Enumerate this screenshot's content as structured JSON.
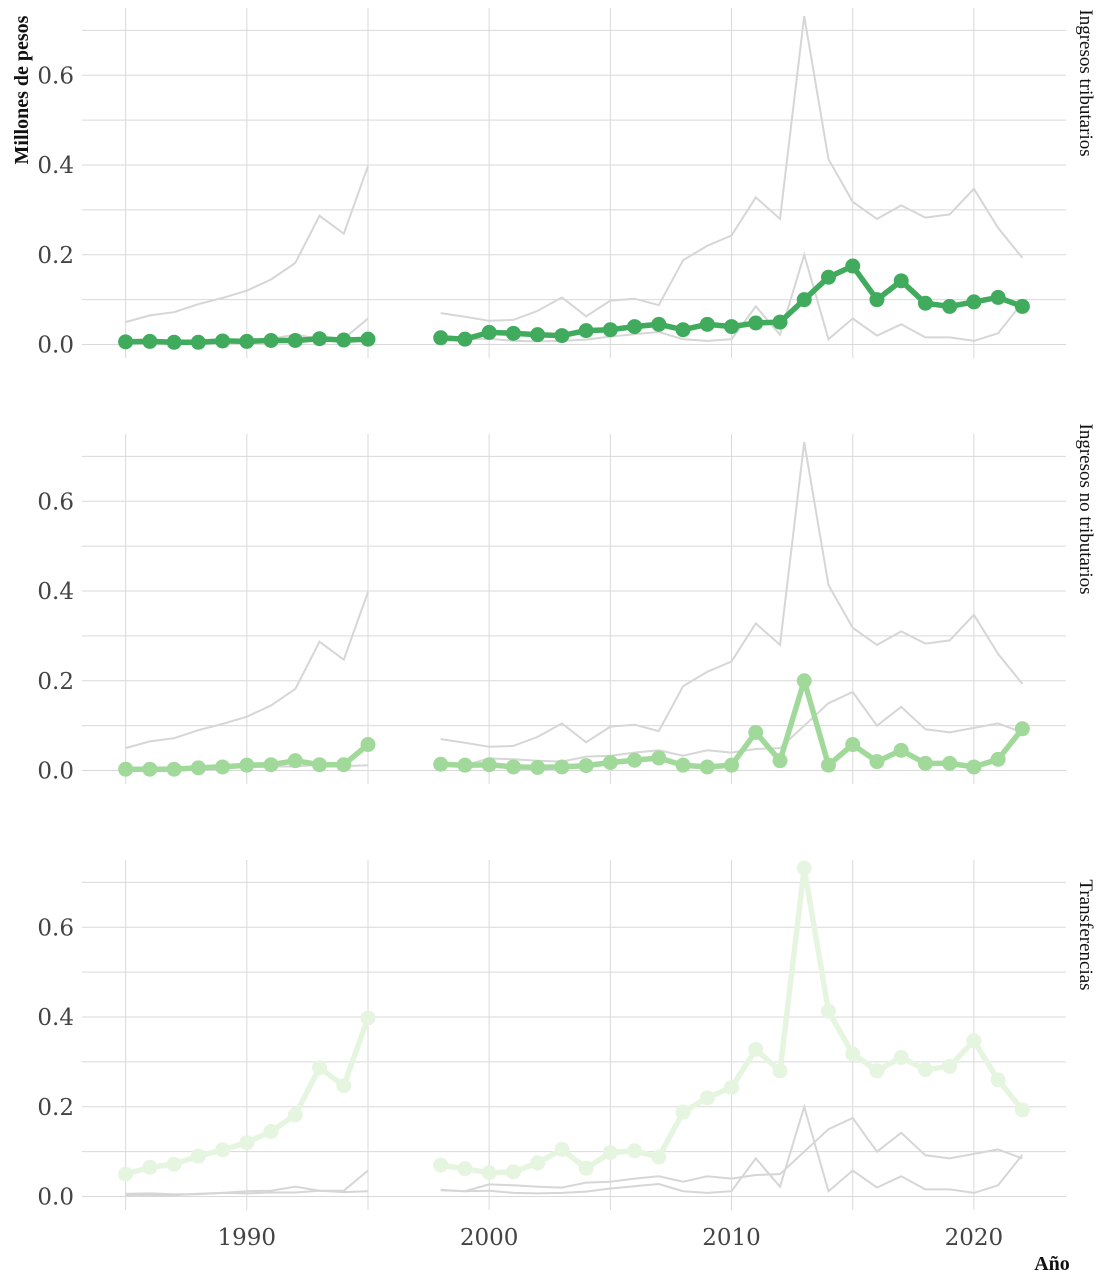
{
  "chart_data": {
    "type": "line",
    "xlabel": "Año",
    "ylabel": "Millones de pesos",
    "xticks": [
      1990,
      2000,
      2010,
      2020
    ],
    "yticks": [
      0.0,
      0.2,
      0.4,
      0.6
    ],
    "ytick_labels": [
      "0.0",
      "0.2",
      "0.4",
      "0.6"
    ],
    "xlim": [
      1983.2,
      2023.8
    ],
    "ylim": [
      -0.03,
      0.75
    ],
    "grid": true,
    "panels": [
      {
        "title": "Ingresos tributarios",
        "series_index": 0,
        "color": "#41ab5d"
      },
      {
        "title": "Ingresos no tributarios",
        "series_index": 1,
        "color": "#a1d99b"
      },
      {
        "title": "Transferencias",
        "series_index": 2,
        "color": "#e5f5e0"
      }
    ],
    "background_line_color": "#d6d6d6",
    "segments": [
      {
        "x": [
          1985,
          1986,
          1987,
          1988,
          1989,
          1990,
          1991,
          1992,
          1993,
          1994,
          1995
        ]
      },
      {
        "x": [
          1998,
          1999,
          2000,
          2001,
          2002,
          2003,
          2004,
          2005,
          2006,
          2007,
          2008,
          2009,
          2010,
          2011,
          2012,
          2013,
          2014,
          2015,
          2016,
          2017,
          2018,
          2019,
          2020,
          2021,
          2022
        ]
      }
    ],
    "series": [
      {
        "values": [
          [
            0.006,
            0.007,
            0.005,
            0.005,
            0.008,
            0.007,
            0.009,
            0.009,
            0.013,
            0.01,
            0.012
          ],
          [
            0.015,
            0.012,
            0.027,
            0.025,
            0.022,
            0.02,
            0.031,
            0.033,
            0.04,
            0.045,
            0.033,
            0.045,
            0.04,
            0.048,
            0.05,
            0.1,
            0.15,
            0.175,
            0.1,
            0.142,
            0.092,
            0.085,
            0.095,
            0.105,
            0.085
          ]
        ]
      },
      {
        "values": [
          [
            0.003,
            0.003,
            0.003,
            0.006,
            0.008,
            0.012,
            0.013,
            0.022,
            0.013,
            0.013,
            0.058
          ],
          [
            0.014,
            0.012,
            0.013,
            0.008,
            0.007,
            0.008,
            0.011,
            0.018,
            0.023,
            0.028,
            0.012,
            0.008,
            0.012,
            0.085,
            0.022,
            0.2,
            0.012,
            0.058,
            0.02,
            0.045,
            0.016,
            0.016,
            0.008,
            0.025,
            0.093
          ]
        ]
      },
      {
        "values": [
          [
            0.05,
            0.065,
            0.072,
            0.09,
            0.104,
            0.12,
            0.145,
            0.182,
            0.287,
            0.247,
            0.398
          ],
          [
            0.07,
            0.062,
            0.053,
            0.055,
            0.075,
            0.105,
            0.063,
            0.098,
            0.102,
            0.088,
            0.188,
            0.22,
            0.243,
            0.328,
            0.28,
            0.732,
            0.413,
            0.318,
            0.28,
            0.31,
            0.283,
            0.29,
            0.347,
            0.26,
            0.193
          ]
        ]
      }
    ]
  }
}
